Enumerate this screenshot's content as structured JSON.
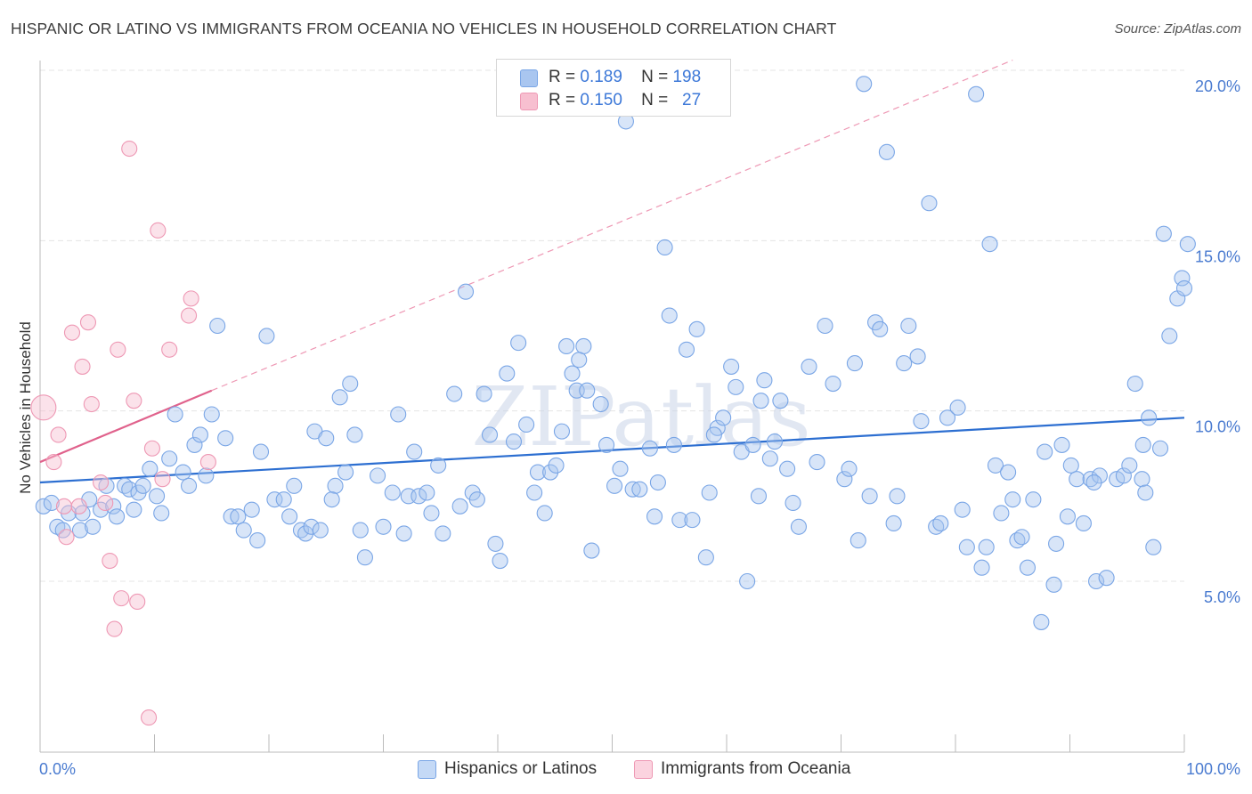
{
  "title": "HISPANIC OR LATINO VS IMMIGRANTS FROM OCEANIA NO VEHICLES IN HOUSEHOLD CORRELATION CHART",
  "source": "Source: ZipAtlas.com",
  "watermark": "ZIPatlas",
  "legend": {
    "r_label": "R =",
    "n_label": "N =",
    "rows": [
      {
        "r": "0.189",
        "n": "198",
        "color": "#a9c6f0",
        "border": "#7aa6e6"
      },
      {
        "r": "0.150",
        "n": "27",
        "color": "#f7bfd0",
        "border": "#ee98b4"
      }
    ]
  },
  "bottom_legend": [
    {
      "label": "Hispanics or Latinos",
      "color": "#c4d9f6",
      "border": "#7aa6e6"
    },
    {
      "label": "Immigrants from Oceania",
      "color": "#fbd3df",
      "border": "#ee98b4"
    }
  ],
  "chart_data": {
    "type": "scatter",
    "title": "HISPANIC OR LATINO VS IMMIGRANTS FROM OCEANIA NO VEHICLES IN HOUSEHOLD CORRELATION CHART",
    "xlabel": "",
    "ylabel": "No Vehicles in Household",
    "xlim": [
      0,
      100
    ],
    "ylim": [
      0,
      21
    ],
    "x_tick_labels": [
      "0.0%",
      "100.0%"
    ],
    "y_ticks": [
      5,
      10,
      15,
      20
    ],
    "y_tick_labels": [
      "5.0%",
      "10.0%",
      "15.0%",
      "20.0%"
    ],
    "grid": true,
    "legend_position": "top-center",
    "series": [
      {
        "name": "Hispanics or Latinos",
        "color": "#7aa6e6",
        "fill": "#a9c6f0",
        "trend": {
          "x0": 0,
          "y0": 7.9,
          "x1": 100,
          "y1": 9.8
        },
        "points": [
          [
            0.3,
            7.2
          ],
          [
            1.0,
            7.3
          ],
          [
            1.5,
            6.6
          ],
          [
            2.0,
            6.5
          ],
          [
            2.5,
            7.0
          ],
          [
            3.5,
            6.5
          ],
          [
            3.7,
            7.0
          ],
          [
            4.3,
            7.4
          ],
          [
            4.6,
            6.6
          ],
          [
            5.3,
            7.1
          ],
          [
            5.8,
            7.8
          ],
          [
            6.4,
            7.2
          ],
          [
            6.7,
            6.9
          ],
          [
            7.4,
            7.8
          ],
          [
            7.8,
            7.7
          ],
          [
            8.2,
            7.1
          ],
          [
            8.6,
            7.6
          ],
          [
            9.0,
            7.8
          ],
          [
            9.6,
            8.3
          ],
          [
            10.2,
            7.5
          ],
          [
            10.6,
            7.0
          ],
          [
            11.3,
            8.6
          ],
          [
            11.8,
            9.9
          ],
          [
            12.5,
            8.2
          ],
          [
            13.0,
            7.8
          ],
          [
            13.5,
            9.0
          ],
          [
            14.0,
            9.3
          ],
          [
            14.5,
            8.1
          ],
          [
            15.0,
            9.9
          ],
          [
            15.5,
            12.5
          ],
          [
            16.2,
            9.2
          ],
          [
            16.7,
            6.9
          ],
          [
            17.3,
            6.9
          ],
          [
            17.8,
            6.5
          ],
          [
            18.5,
            7.1
          ],
          [
            19.0,
            6.2
          ],
          [
            19.3,
            8.8
          ],
          [
            19.8,
            12.2
          ],
          [
            20.5,
            7.4
          ],
          [
            21.3,
            7.4
          ],
          [
            21.8,
            6.9
          ],
          [
            22.2,
            7.8
          ],
          [
            22.8,
            6.5
          ],
          [
            23.2,
            6.4
          ],
          [
            23.7,
            6.6
          ],
          [
            24.0,
            9.4
          ],
          [
            24.5,
            6.5
          ],
          [
            25.0,
            9.2
          ],
          [
            25.8,
            7.8
          ],
          [
            26.2,
            10.4
          ],
          [
            26.7,
            8.2
          ],
          [
            27.1,
            10.8
          ],
          [
            27.5,
            9.3
          ],
          [
            28.0,
            6.5
          ],
          [
            28.4,
            5.7
          ],
          [
            29.5,
            8.1
          ],
          [
            30.0,
            6.6
          ],
          [
            30.8,
            7.6
          ],
          [
            31.3,
            9.9
          ],
          [
            31.8,
            6.4
          ],
          [
            32.2,
            7.5
          ],
          [
            32.7,
            8.8
          ],
          [
            33.1,
            7.5
          ],
          [
            33.8,
            7.6
          ],
          [
            34.2,
            7.0
          ],
          [
            34.8,
            8.4
          ],
          [
            35.2,
            6.4
          ],
          [
            36.2,
            10.5
          ],
          [
            36.7,
            7.2
          ],
          [
            37.2,
            13.5
          ],
          [
            37.8,
            7.6
          ],
          [
            38.2,
            7.4
          ],
          [
            38.8,
            10.5
          ],
          [
            39.3,
            9.3
          ],
          [
            39.8,
            6.1
          ],
          [
            40.2,
            5.6
          ],
          [
            40.8,
            11.1
          ],
          [
            41.4,
            9.1
          ],
          [
            41.8,
            12.0
          ],
          [
            42.5,
            9.6
          ],
          [
            43.2,
            7.6
          ],
          [
            43.5,
            8.2
          ],
          [
            44.1,
            7.0
          ],
          [
            44.6,
            8.2
          ],
          [
            45.1,
            8.4
          ],
          [
            45.6,
            9.4
          ],
          [
            46.0,
            11.9
          ],
          [
            46.5,
            11.1
          ],
          [
            46.9,
            10.6
          ],
          [
            47.5,
            11.9
          ],
          [
            47.8,
            10.6
          ],
          [
            48.2,
            5.9
          ],
          [
            49.0,
            10.2
          ],
          [
            49.5,
            9.0
          ],
          [
            50.2,
            7.8
          ],
          [
            50.7,
            8.3
          ],
          [
            51.2,
            18.5
          ],
          [
            51.8,
            7.7
          ],
          [
            52.4,
            7.7
          ],
          [
            53.3,
            8.9
          ],
          [
            54.0,
            7.9
          ],
          [
            54.6,
            14.8
          ],
          [
            55.0,
            12.8
          ],
          [
            55.4,
            9.0
          ],
          [
            55.9,
            6.8
          ],
          [
            56.5,
            11.8
          ],
          [
            57.0,
            6.8
          ],
          [
            57.4,
            12.4
          ],
          [
            58.2,
            5.7
          ],
          [
            58.5,
            7.6
          ],
          [
            59.2,
            9.5
          ],
          [
            59.7,
            9.8
          ],
          [
            60.4,
            11.3
          ],
          [
            60.8,
            10.7
          ],
          [
            61.3,
            8.8
          ],
          [
            61.8,
            5.0
          ],
          [
            62.3,
            9.0
          ],
          [
            62.8,
            7.5
          ],
          [
            63.3,
            10.9
          ],
          [
            63.8,
            8.6
          ],
          [
            64.2,
            9.1
          ],
          [
            64.7,
            10.3
          ],
          [
            65.3,
            8.3
          ],
          [
            65.8,
            7.3
          ],
          [
            66.3,
            6.6
          ],
          [
            67.2,
            11.3
          ],
          [
            67.9,
            8.5
          ],
          [
            68.6,
            12.5
          ],
          [
            69.3,
            10.8
          ],
          [
            70.3,
            8.0
          ],
          [
            70.7,
            8.3
          ],
          [
            71.2,
            11.4
          ],
          [
            71.5,
            6.2
          ],
          [
            72.0,
            19.6
          ],
          [
            72.5,
            7.5
          ],
          [
            73.0,
            12.6
          ],
          [
            73.4,
            12.4
          ],
          [
            74.0,
            17.6
          ],
          [
            74.6,
            6.7
          ],
          [
            74.9,
            7.5
          ],
          [
            75.5,
            11.4
          ],
          [
            75.9,
            12.5
          ],
          [
            76.7,
            11.6
          ],
          [
            77.0,
            9.7
          ],
          [
            77.7,
            16.1
          ],
          [
            78.3,
            6.6
          ],
          [
            78.7,
            6.7
          ],
          [
            79.3,
            9.8
          ],
          [
            80.2,
            10.1
          ],
          [
            80.6,
            7.1
          ],
          [
            81.0,
            6.0
          ],
          [
            81.8,
            19.3
          ],
          [
            82.3,
            5.4
          ],
          [
            82.7,
            6.0
          ],
          [
            83.0,
            14.9
          ],
          [
            83.5,
            8.4
          ],
          [
            84.0,
            7.0
          ],
          [
            84.6,
            8.2
          ],
          [
            85.0,
            7.4
          ],
          [
            85.4,
            6.2
          ],
          [
            85.8,
            6.3
          ],
          [
            86.3,
            5.4
          ],
          [
            86.8,
            7.4
          ],
          [
            87.5,
            3.8
          ],
          [
            87.8,
            8.8
          ],
          [
            88.6,
            4.9
          ],
          [
            88.8,
            6.1
          ],
          [
            89.3,
            9.0
          ],
          [
            89.8,
            6.9
          ],
          [
            90.1,
            8.4
          ],
          [
            90.6,
            8.0
          ],
          [
            91.2,
            6.7
          ],
          [
            91.8,
            8.0
          ],
          [
            92.3,
            5.0
          ],
          [
            92.6,
            8.1
          ],
          [
            93.2,
            5.1
          ],
          [
            94.1,
            8.0
          ],
          [
            94.7,
            8.1
          ],
          [
            95.2,
            8.4
          ],
          [
            95.7,
            10.8
          ],
          [
            96.3,
            8.0
          ],
          [
            96.6,
            7.6
          ],
          [
            96.9,
            9.8
          ],
          [
            97.3,
            6.0
          ],
          [
            97.9,
            8.9
          ],
          [
            98.2,
            15.2
          ],
          [
            98.7,
            12.2
          ],
          [
            99.4,
            13.3
          ],
          [
            99.8,
            13.9
          ],
          [
            100.0,
            13.6
          ],
          [
            100.3,
            14.9
          ],
          [
            96.4,
            9.0
          ],
          [
            92.1,
            7.9
          ],
          [
            63.0,
            10.3
          ],
          [
            58.9,
            9.3
          ],
          [
            53.7,
            6.9
          ],
          [
            47.1,
            11.5
          ],
          [
            25.5,
            7.4
          ]
        ]
      },
      {
        "name": "Immigrants from Oceania",
        "color": "#ee98b4",
        "fill": "#f7bfd0",
        "trend": {
          "x0": 0,
          "y0": 8.5,
          "x1": 15,
          "y1": 10.6
        },
        "trend_dashed": {
          "x0": 15,
          "y0": 10.6,
          "x1": 85,
          "y1": 20.3
        },
        "points": [
          [
            0.3,
            10.1
          ],
          [
            1.2,
            8.5
          ],
          [
            1.6,
            9.3
          ],
          [
            2.1,
            7.2
          ],
          [
            2.3,
            6.3
          ],
          [
            2.8,
            12.3
          ],
          [
            3.4,
            7.2
          ],
          [
            3.7,
            11.3
          ],
          [
            4.2,
            12.6
          ],
          [
            4.5,
            10.2
          ],
          [
            5.3,
            7.9
          ],
          [
            5.7,
            7.3
          ],
          [
            6.1,
            5.6
          ],
          [
            6.8,
            11.8
          ],
          [
            7.1,
            4.5
          ],
          [
            7.8,
            17.7
          ],
          [
            8.2,
            10.3
          ],
          [
            8.5,
            4.4
          ],
          [
            6.5,
            3.6
          ],
          [
            9.5,
            1.0
          ],
          [
            9.8,
            8.9
          ],
          [
            10.3,
            15.3
          ],
          [
            10.7,
            8.0
          ],
          [
            11.3,
            11.8
          ],
          [
            13.0,
            12.8
          ],
          [
            13.2,
            13.3
          ],
          [
            14.7,
            8.5
          ]
        ]
      }
    ]
  }
}
